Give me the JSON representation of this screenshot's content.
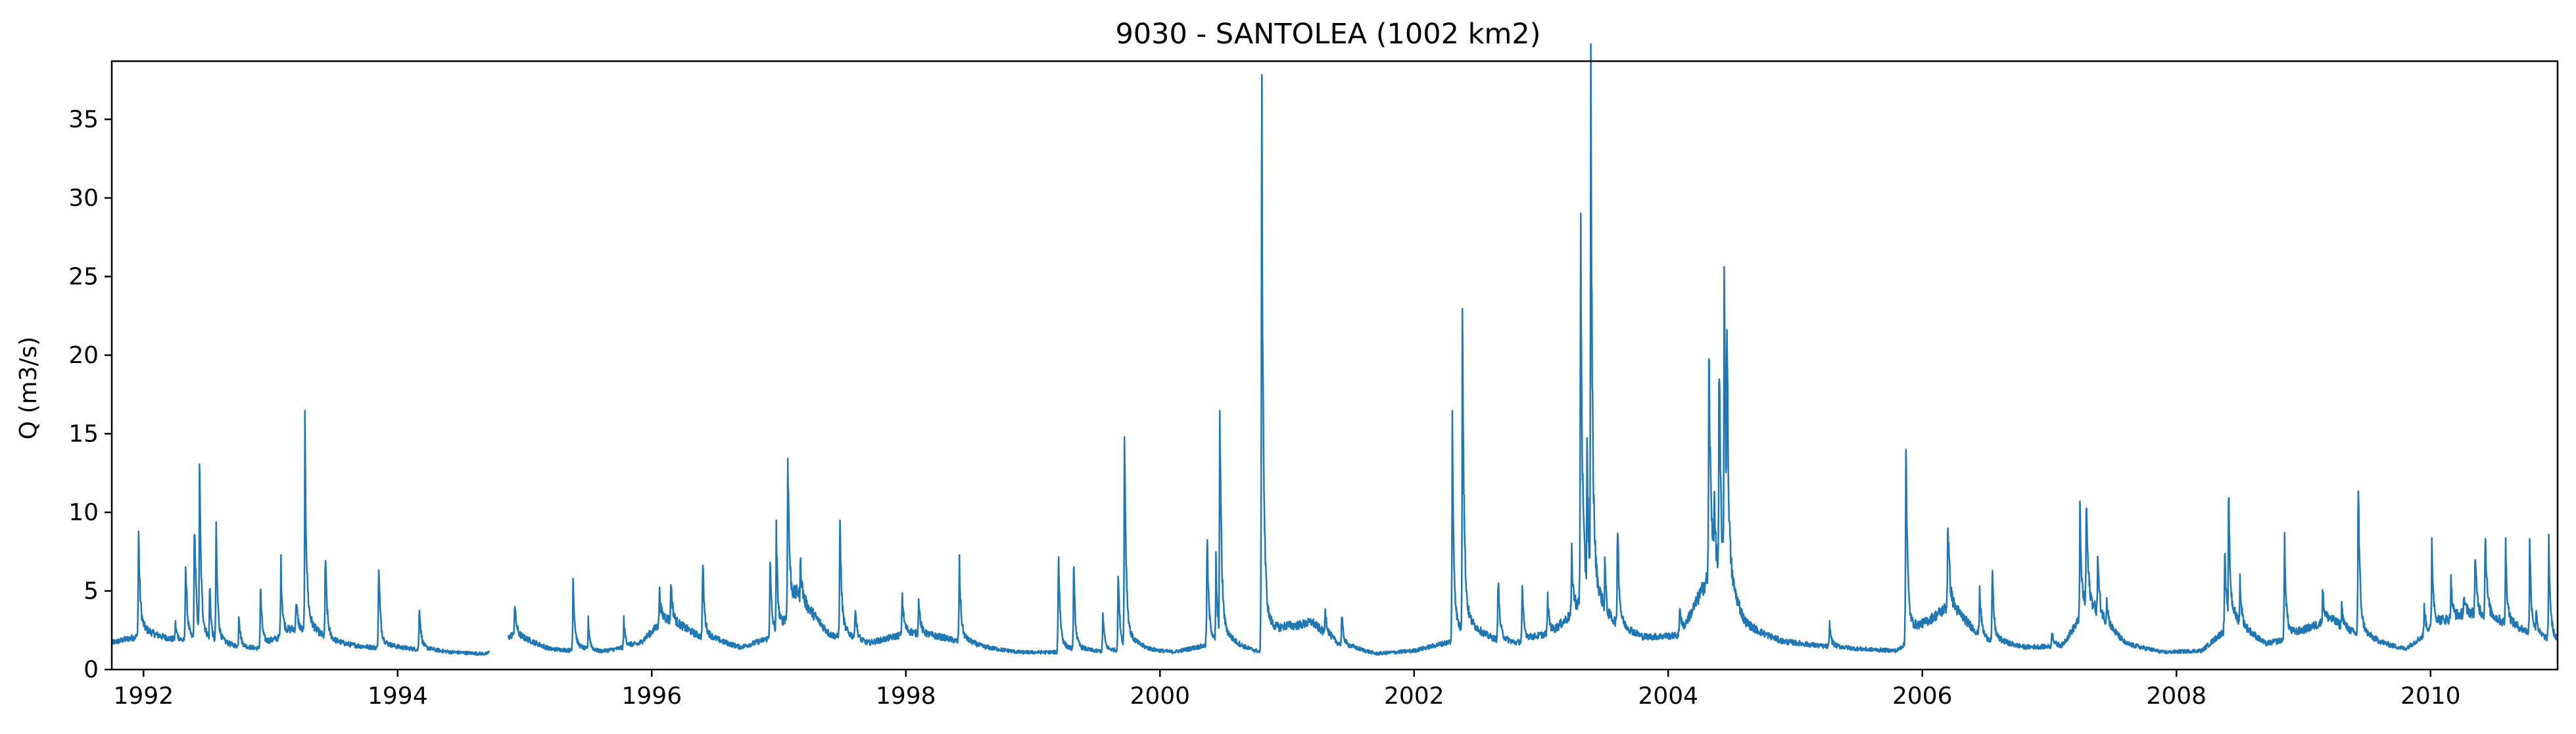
{
  "chart_data": {
    "type": "line",
    "title": "9030 - SANTOLEA (1002 km2)",
    "xlabel": "",
    "ylabel": "Q (m3/s)",
    "xlim": [
      1991.75,
      2011.0
    ],
    "ylim": [
      0,
      38.7
    ],
    "x_ticks": [
      1992,
      1994,
      1996,
      1998,
      2000,
      2002,
      2004,
      2006,
      2008,
      2010
    ],
    "y_ticks": [
      0,
      5,
      10,
      15,
      20,
      25,
      30,
      35
    ],
    "grid": false,
    "line_color": "#1f77b4",
    "gap": [
      1994.72,
      1994.87
    ],
    "baseflow_anchors": [
      [
        1991.75,
        1.7
      ],
      [
        1992.0,
        2.2
      ],
      [
        1992.3,
        1.8
      ],
      [
        1992.6,
        1.4
      ],
      [
        1992.9,
        1.3
      ],
      [
        1993.2,
        2.5
      ],
      [
        1993.5,
        1.6
      ],
      [
        1993.8,
        1.4
      ],
      [
        1994.1,
        1.3
      ],
      [
        1994.4,
        1.1
      ],
      [
        1994.7,
        1.0
      ],
      [
        1994.9,
        2.2
      ],
      [
        1995.2,
        1.3
      ],
      [
        1995.6,
        1.1
      ],
      [
        1995.9,
        1.6
      ],
      [
        1996.1,
        3.2
      ],
      [
        1996.4,
        2.0
      ],
      [
        1996.7,
        1.4
      ],
      [
        1997.0,
        2.2
      ],
      [
        1997.15,
        4.5
      ],
      [
        1997.4,
        2.2
      ],
      [
        1997.7,
        1.6
      ],
      [
        1998.0,
        2.3
      ],
      [
        1998.3,
        2.0
      ],
      [
        1998.6,
        1.4
      ],
      [
        1998.9,
        1.1
      ],
      [
        1999.2,
        1.1
      ],
      [
        1999.5,
        1.1
      ],
      [
        1999.8,
        1.2
      ],
      [
        2000.1,
        1.1
      ],
      [
        2000.4,
        1.6
      ],
      [
        2000.7,
        1.2
      ],
      [
        2000.85,
        1.0
      ],
      [
        2001.0,
        2.4
      ],
      [
        2001.2,
        3.0
      ],
      [
        2001.4,
        1.6
      ],
      [
        2001.7,
        1.0
      ],
      [
        2002.0,
        1.2
      ],
      [
        2002.3,
        1.8
      ],
      [
        2002.5,
        2.0
      ],
      [
        2002.8,
        1.6
      ],
      [
        2003.1,
        2.4
      ],
      [
        2003.3,
        4.0
      ],
      [
        2003.5,
        2.8
      ],
      [
        2003.8,
        2.0
      ],
      [
        2004.1,
        2.2
      ],
      [
        2004.35,
        6.5
      ],
      [
        2004.6,
        2.6
      ],
      [
        2004.9,
        1.8
      ],
      [
        2005.2,
        1.5
      ],
      [
        2005.5,
        1.3
      ],
      [
        2005.8,
        1.2
      ],
      [
        2006.0,
        2.6
      ],
      [
        2006.2,
        4.0
      ],
      [
        2006.5,
        1.8
      ],
      [
        2006.8,
        1.4
      ],
      [
        2007.1,
        1.5
      ],
      [
        2007.3,
        4.0
      ],
      [
        2007.6,
        1.6
      ],
      [
        2007.9,
        1.1
      ],
      [
        2008.2,
        1.2
      ],
      [
        2008.45,
        3.0
      ],
      [
        2008.7,
        1.6
      ],
      [
        2008.9,
        2.0
      ],
      [
        2009.2,
        3.2
      ],
      [
        2009.5,
        1.8
      ],
      [
        2009.8,
        1.3
      ],
      [
        2010.05,
        2.8
      ],
      [
        2010.3,
        3.6
      ],
      [
        2010.6,
        2.8
      ],
      [
        2011.0,
        1.6
      ]
    ],
    "peaks": [
      [
        1991.96,
        8.5
      ],
      [
        1992.25,
        2.9
      ],
      [
        1992.33,
        6.9
      ],
      [
        1992.4,
        9.8
      ],
      [
        1992.44,
        12.6
      ],
      [
        1992.52,
        5.3
      ],
      [
        1992.57,
        8.8
      ],
      [
        1992.75,
        3.5
      ],
      [
        1992.92,
        5.1
      ],
      [
        1993.08,
        6.7
      ],
      [
        1993.2,
        4.5
      ],
      [
        1993.27,
        14.1
      ],
      [
        1993.43,
        7.3
      ],
      [
        1993.85,
        6.7
      ],
      [
        1994.17,
        4.1
      ],
      [
        1994.92,
        4.2
      ],
      [
        1995.38,
        5.7
      ],
      [
        1995.5,
        3.0
      ],
      [
        1995.78,
        3.0
      ],
      [
        1996.06,
        5.0
      ],
      [
        1996.15,
        5.6
      ],
      [
        1996.4,
        6.9
      ],
      [
        1996.93,
        6.8
      ],
      [
        1996.98,
        8.2
      ],
      [
        1997.07,
        13.8
      ],
      [
        1997.17,
        7.0
      ],
      [
        1997.48,
        9.6
      ],
      [
        1997.6,
        4.2
      ],
      [
        1997.97,
        4.8
      ],
      [
        1998.1,
        4.6
      ],
      [
        1998.42,
        6.7
      ],
      [
        1999.2,
        7.6
      ],
      [
        1999.32,
        6.4
      ],
      [
        1999.55,
        3.5
      ],
      [
        1999.67,
        6.2
      ],
      [
        1999.72,
        15.2
      ],
      [
        2000.37,
        8.4
      ],
      [
        2000.44,
        6.5
      ],
      [
        2000.47,
        17.0
      ],
      [
        2000.8,
        35.8
      ],
      [
        2001.3,
        3.8
      ],
      [
        2001.43,
        3.4
      ],
      [
        2002.3,
        14.7
      ],
      [
        2002.38,
        22.5
      ],
      [
        2002.66,
        6.0
      ],
      [
        2002.85,
        5.0
      ],
      [
        2003.05,
        4.5
      ],
      [
        2003.24,
        7.2
      ],
      [
        2003.31,
        28.0
      ],
      [
        2003.36,
        15.0
      ],
      [
        2003.39,
        37.0
      ],
      [
        2003.5,
        7.0
      ],
      [
        2003.6,
        9.7
      ],
      [
        2004.09,
        4.2
      ],
      [
        2004.25,
        4.1
      ],
      [
        2004.32,
        20.0
      ],
      [
        2004.36,
        11.0
      ],
      [
        2004.4,
        19.5
      ],
      [
        2004.44,
        26.1
      ],
      [
        2004.46,
        23.7
      ],
      [
        2005.27,
        2.8
      ],
      [
        2005.87,
        14.5
      ],
      [
        2006.2,
        9.8
      ],
      [
        2006.45,
        5.2
      ],
      [
        2006.55,
        6.1
      ],
      [
        2007.02,
        2.5
      ],
      [
        2007.24,
        9.5
      ],
      [
        2007.29,
        10.8
      ],
      [
        2007.38,
        7.2
      ],
      [
        2007.45,
        4.6
      ],
      [
        2008.38,
        7.2
      ],
      [
        2008.41,
        10.8
      ],
      [
        2008.5,
        5.6
      ],
      [
        2008.85,
        8.2
      ],
      [
        2009.15,
        5.0
      ],
      [
        2009.3,
        4.0
      ],
      [
        2009.43,
        11.7
      ],
      [
        2009.95,
        4.0
      ],
      [
        2010.01,
        7.6
      ],
      [
        2010.16,
        5.5
      ],
      [
        2010.26,
        4.8
      ],
      [
        2010.35,
        7.3
      ],
      [
        2010.43,
        9.0
      ],
      [
        2010.59,
        7.7
      ],
      [
        2010.78,
        7.6
      ],
      [
        2010.83,
        4.0
      ],
      [
        2010.93,
        7.8
      ]
    ]
  }
}
